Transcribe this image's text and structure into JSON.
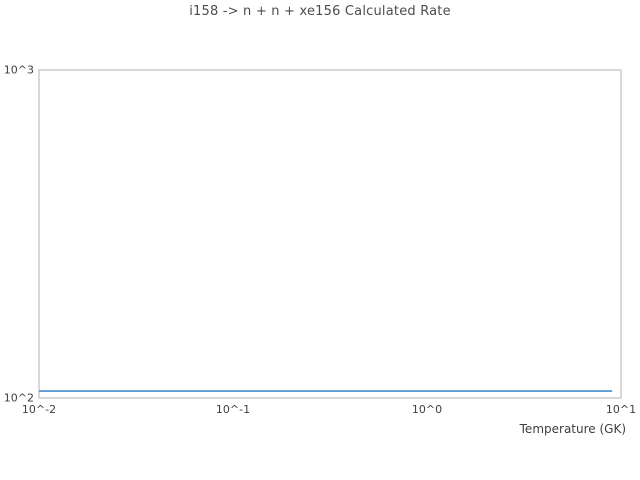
{
  "figure": {
    "title": "i158 -> n + n + xe156 Calculated Rate"
  },
  "chart_data": {
    "type": "line",
    "title": "i158 -> n + n + xe156 Calculated Rate",
    "xlabel": "Temperature (GK)",
    "ylabel": "",
    "x_scale": "log",
    "y_scale": "log",
    "xlim": [
      0.01,
      10
    ],
    "ylim": [
      100,
      1000
    ],
    "x_ticks": [
      {
        "value": 0.01,
        "label": "10^-2"
      },
      {
        "value": 0.1,
        "label": "10^-1"
      },
      {
        "value": 1,
        "label": "10^0"
      },
      {
        "value": 10,
        "label": "10^1"
      }
    ],
    "y_ticks": [
      {
        "value": 100,
        "label": "10^2"
      },
      {
        "value": 1000,
        "label": "10^3"
      }
    ],
    "grid": false,
    "legend": false,
    "series": [
      {
        "name": "Calculated Rate",
        "color": "#5b9bd5",
        "x": [
          0.01,
          0.1,
          1.0,
          9.0
        ],
        "y": [
          105,
          105,
          105,
          105
        ]
      }
    ],
    "colors": {
      "frame": "#cccccc",
      "text": "#3f3f3f",
      "title": "#4d4d4d",
      "background": "#ffffff"
    }
  }
}
